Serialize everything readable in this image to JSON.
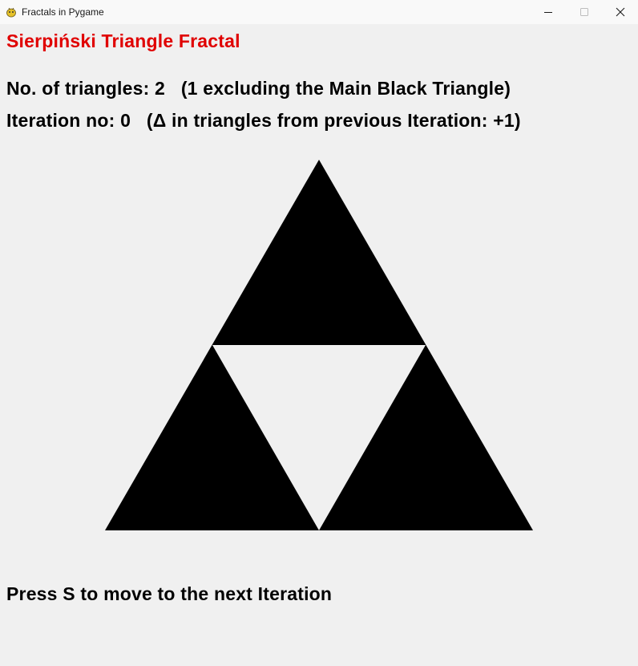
{
  "window": {
    "title": "Fractals in Pygame",
    "app_icon": "pygame-snake-icon",
    "controls": {
      "minimize_icon": "minimize-icon",
      "maximize_icon": "maximize-icon",
      "close_icon": "close-icon"
    }
  },
  "screen": {
    "heading": "Sierpiński Triangle Fractal",
    "heading_color": "#e00000",
    "triangle_count_line": "No. of triangles: 2   (1 excluding the Main Black Triangle)",
    "iteration_line": "Iteration no: 0   (Δ in triangles from previous Iteration: +1)",
    "instruction": "Press S to move to the next Iteration"
  },
  "fractal": {
    "iteration": 0,
    "fill_color": "#000000",
    "hole_color": "#f0f0f0"
  }
}
